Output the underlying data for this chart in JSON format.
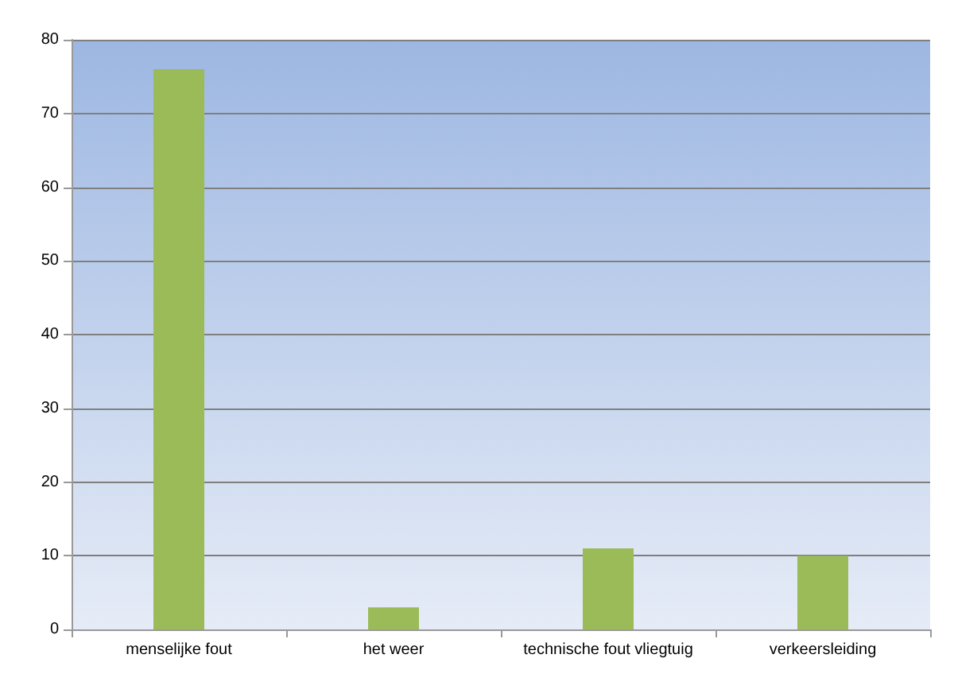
{
  "chart_data": {
    "type": "bar",
    "categories": [
      "menselijke fout",
      "het weer",
      "technische fout vliegtuig",
      "verkeersleiding"
    ],
    "values": [
      76,
      3,
      11,
      10
    ],
    "color": "#9bbb59",
    "ylim": [
      0,
      80
    ],
    "yticks": [
      0,
      10,
      20,
      30,
      40,
      50,
      60,
      70,
      80
    ],
    "grid": "y"
  }
}
